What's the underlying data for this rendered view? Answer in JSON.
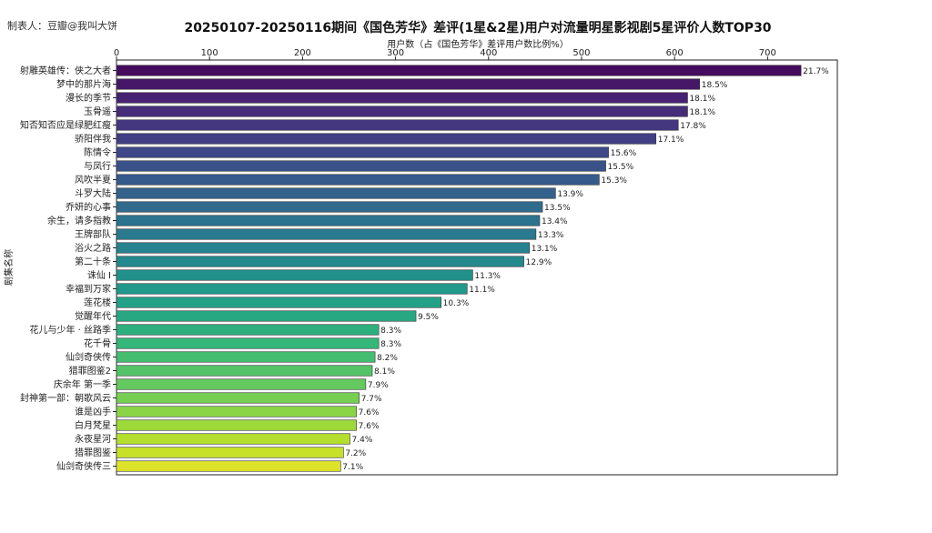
{
  "credit": "制表人：豆瓣@我叫大饼",
  "chart_data": {
    "type": "bar",
    "orientation": "horizontal",
    "title": "20250107-20250116期间《国色芳华》差评(1星&2星)用户对流量明星影视剧5星评价人数TOP30",
    "xlabel": "用户数（占《国色芳华》差评用户数比例%）",
    "ylabel": "剧集名称",
    "xlim": [
      0,
      760
    ],
    "xticks": [
      0,
      100,
      200,
      300,
      400,
      500,
      600,
      700
    ],
    "x_axis_position": "top",
    "grid": false,
    "colormap": "viridis",
    "categories": [
      "射雕英雄传：侠之大者",
      "梦中的那片海",
      "漫长的季节",
      "玉骨遥",
      "知否知否应是绿肥红瘦",
      "骄阳伴我",
      "陈情令",
      "与凤行",
      "风吹半夏",
      "斗罗大陆",
      "乔妍的心事",
      "余生，请多指教",
      "王牌部队",
      "浴火之路",
      "第二十条",
      "诛仙 Ⅰ",
      "幸福到万家",
      "莲花楼",
      "觉醒年代",
      "花儿与少年 · 丝路季",
      "花千骨",
      "仙剑奇侠传",
      "猎罪图鉴2",
      "庆余年 第一季",
      "封神第一部：朝歌风云",
      "谁是凶手",
      "白月梵星",
      "永夜星河",
      "猎罪图鉴",
      "仙剑奇侠传三"
    ],
    "values": [
      736,
      627,
      614,
      614,
      604,
      580,
      529,
      526,
      519,
      472,
      458,
      455,
      451,
      444,
      438,
      383,
      377,
      349,
      322,
      282,
      282,
      278,
      275,
      268,
      261,
      258,
      258,
      251,
      244,
      241
    ],
    "labels": [
      "21.7%",
      "18.5%",
      "18.1%",
      "18.1%",
      "17.8%",
      "17.1%",
      "15.6%",
      "15.5%",
      "15.3%",
      "13.9%",
      "13.5%",
      "13.4%",
      "13.3%",
      "13.1%",
      "12.9%",
      "11.3%",
      "11.1%",
      "10.3%",
      "9.5%",
      "8.3%",
      "8.3%",
      "8.2%",
      "8.1%",
      "7.9%",
      "7.7%",
      "7.6%",
      "7.6%",
      "7.4%",
      "7.2%",
      "7.1%"
    ]
  }
}
